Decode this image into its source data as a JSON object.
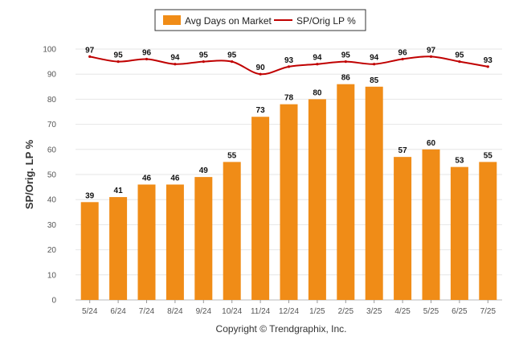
{
  "chart_data": {
    "type": "bar",
    "categories": [
      "5/24",
      "6/24",
      "7/24",
      "8/24",
      "9/24",
      "10/24",
      "11/24",
      "12/24",
      "1/25",
      "2/25",
      "3/25",
      "4/25",
      "5/25",
      "6/25",
      "7/25"
    ],
    "series": [
      {
        "name": "Avg Days on Market",
        "type": "bar",
        "color": "#f08c17",
        "values": [
          39,
          41,
          46,
          46,
          49,
          55,
          73,
          78,
          80,
          86,
          85,
          57,
          60,
          53,
          55
        ]
      },
      {
        "name": "SP/Orig LP %",
        "type": "line",
        "color": "#c00000",
        "values": [
          97,
          95,
          96,
          94,
          95,
          95,
          90,
          93,
          94,
          95,
          94,
          96,
          97,
          95,
          93
        ]
      }
    ],
    "ylabel": "SP/Orig. LP %",
    "ylim": [
      0,
      100
    ],
    "yticks": [
      0,
      10,
      20,
      30,
      40,
      50,
      60,
      70,
      80,
      90,
      100
    ],
    "grid": true,
    "legend_position": "top-center",
    "footer": "Copyright © Trendgraphix, Inc."
  }
}
